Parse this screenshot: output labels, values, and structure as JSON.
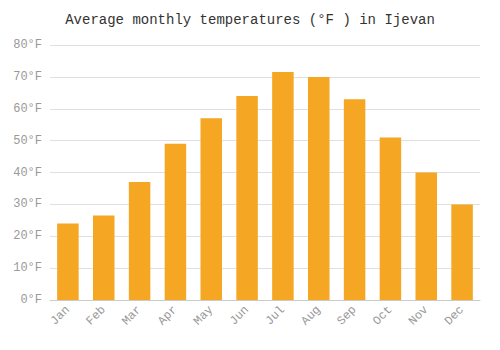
{
  "chart_data": {
    "type": "bar",
    "title": "Average monthly temperatures (°F ) in Ijevan",
    "categories": [
      "Jan",
      "Feb",
      "Mar",
      "Apr",
      "May",
      "Jun",
      "Jul",
      "Aug",
      "Sep",
      "Oct",
      "Nov",
      "Dec"
    ],
    "values": [
      24,
      26.5,
      37,
      49,
      57,
      64,
      71.5,
      70,
      63,
      51,
      40,
      30
    ],
    "color": "#F5A623",
    "ylim": [
      0,
      80
    ],
    "yticks": [
      {
        "value": 0,
        "label": "0°F"
      },
      {
        "value": 10,
        "label": "10°F"
      },
      {
        "value": 20,
        "label": "20°F"
      },
      {
        "value": 30,
        "label": "30°F"
      },
      {
        "value": 40,
        "label": "40°F"
      },
      {
        "value": 50,
        "label": "50°F"
      },
      {
        "value": 60,
        "label": "60°F"
      },
      {
        "value": 70,
        "label": "70°F"
      },
      {
        "value": 80,
        "label": "80°F"
      }
    ],
    "grid": true
  }
}
